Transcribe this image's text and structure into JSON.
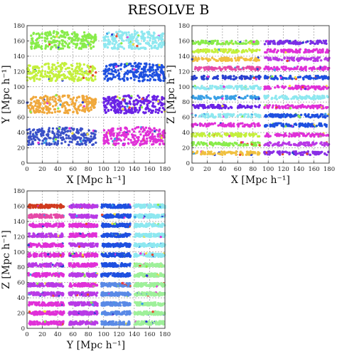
{
  "figure": {
    "title": "RESOLVE B"
  },
  "chart_data": [
    {
      "type": "scatter",
      "projection": "x-y",
      "xlabel": "X [Mpc h⁻¹]",
      "ylabel": "Y [Mpc h⁻¹]",
      "xlim": [
        0,
        180
      ],
      "ylim": [
        0,
        180
      ],
      "xticks": [
        "0",
        "20",
        "40",
        "60",
        "80",
        "100",
        "120",
        "140",
        "160",
        "180"
      ],
      "yticks": [
        "0",
        "20",
        "40",
        "60",
        "80",
        "100",
        "120",
        "140",
        "160",
        "180"
      ],
      "grid": true,
      "groups": [
        {
          "shape": "wedge",
          "x": [
            5,
            90
          ],
          "y": [
            150,
            170
          ],
          "color": "#88ec4a"
        },
        {
          "shape": "wedge",
          "x": [
            100,
            180
          ],
          "y": [
            150,
            170
          ],
          "color": "#8ee8f0"
        },
        {
          "shape": "wedge",
          "x": [
            0,
            90
          ],
          "y": [
            108,
            128
          ],
          "color": "#c4f03c"
        },
        {
          "shape": "wedge",
          "x": [
            100,
            180
          ],
          "y": [
            108,
            128
          ],
          "color": "#1e50e0"
        },
        {
          "shape": "wedge",
          "x": [
            0,
            90
          ],
          "y": [
            66,
            86
          ],
          "color": "#f0a83c"
        },
        {
          "shape": "wedge",
          "x": [
            100,
            180
          ],
          "y": [
            66,
            86
          ],
          "color": "#6a22e6"
        },
        {
          "shape": "wedge",
          "x": [
            0,
            90
          ],
          "y": [
            24,
            44
          ],
          "color": "#3a50c8"
        },
        {
          "shape": "wedge",
          "x": [
            100,
            180
          ],
          "y": [
            24,
            44
          ],
          "color": "#e030d8"
        }
      ]
    },
    {
      "type": "scatter",
      "projection": "x-z",
      "xlabel": "X [Mpc h⁻¹]",
      "ylabel": "Z [Mpc h⁻¹]",
      "xlim": [
        0,
        180
      ],
      "ylim": [
        0,
        180
      ],
      "xticks": [
        "0",
        "20",
        "40",
        "60",
        "80",
        "100",
        "120",
        "140",
        "160",
        "180"
      ],
      "yticks": [
        "0",
        "20",
        "40",
        "60",
        "80",
        "100",
        "120",
        "140",
        "160",
        "180"
      ],
      "grid": true,
      "groups": [
        {
          "shape": "strip",
          "x": [
            0,
            90
          ],
          "z": 158,
          "color": "#88ec4a"
        },
        {
          "shape": "strip",
          "x": [
            95,
            180
          ],
          "z": 158,
          "color": "#7a2ee6"
        },
        {
          "shape": "strip",
          "x": [
            0,
            90
          ],
          "z": 147,
          "color": "#c4f03c"
        },
        {
          "shape": "strip",
          "x": [
            95,
            180
          ],
          "z": 147,
          "color": "#e030d8"
        },
        {
          "shape": "strip",
          "x": [
            0,
            90
          ],
          "z": 136,
          "color": "#f0c040"
        },
        {
          "shape": "strip",
          "x": [
            95,
            180
          ],
          "z": 136,
          "color": "#b83ae6"
        },
        {
          "shape": "strip",
          "x": [
            0,
            90
          ],
          "z": 124,
          "color": "#e64aa8"
        },
        {
          "shape": "strip",
          "x": [
            95,
            180
          ],
          "z": 124,
          "color": "#e030d8"
        },
        {
          "shape": "strip",
          "x": [
            0,
            90
          ],
          "z": 112,
          "color": "#2a40d0"
        },
        {
          "shape": "strip",
          "x": [
            95,
            180
          ],
          "z": 112,
          "color": "#1e50e0"
        },
        {
          "shape": "strip",
          "x": [
            0,
            90
          ],
          "z": 99,
          "color": "#8ee8f0"
        },
        {
          "shape": "strip",
          "x": [
            95,
            180
          ],
          "z": 99,
          "color": "#e030d8"
        },
        {
          "shape": "strip",
          "x": [
            0,
            90
          ],
          "z": 86,
          "color": "#3aa0e6"
        },
        {
          "shape": "strip",
          "x": [
            95,
            180
          ],
          "z": 86,
          "color": "#8ee8f0"
        },
        {
          "shape": "strip",
          "x": [
            0,
            90
          ],
          "z": 74,
          "color": "#6a22e6"
        },
        {
          "shape": "strip",
          "x": [
            95,
            180
          ],
          "z": 74,
          "color": "#e030d8"
        },
        {
          "shape": "strip",
          "x": [
            0,
            90
          ],
          "z": 62,
          "color": "#8ee8f0"
        },
        {
          "shape": "strip",
          "x": [
            95,
            180
          ],
          "z": 62,
          "color": "#1e50e0"
        },
        {
          "shape": "strip",
          "x": [
            0,
            90
          ],
          "z": 50,
          "color": "#e030d8"
        },
        {
          "shape": "strip",
          "x": [
            95,
            180
          ],
          "z": 50,
          "color": "#1e50e0"
        },
        {
          "shape": "strip",
          "x": [
            0,
            90
          ],
          "z": 37,
          "color": "#c4f03c"
        },
        {
          "shape": "strip",
          "x": [
            95,
            180
          ],
          "z": 37,
          "color": "#e030d8"
        },
        {
          "shape": "strip",
          "x": [
            0,
            90
          ],
          "z": 25,
          "color": "#88ec4a"
        },
        {
          "shape": "strip",
          "x": [
            95,
            180
          ],
          "z": 25,
          "color": "#b83ae6"
        },
        {
          "shape": "strip",
          "x": [
            0,
            90
          ],
          "z": 13,
          "color": "#f0c040"
        },
        {
          "shape": "strip",
          "x": [
            95,
            180
          ],
          "z": 13,
          "color": "#8a2ee6"
        }
      ]
    },
    {
      "type": "scatter",
      "projection": "y-z",
      "xlabel": "Y [Mpc h⁻¹]",
      "ylabel": "Z [Mpc h⁻¹]",
      "xlim": [
        0,
        180
      ],
      "ylim": [
        0,
        180
      ],
      "xticks": [
        "0",
        "20",
        "40",
        "60",
        "80",
        "100",
        "120",
        "140",
        "160",
        "180"
      ],
      "yticks": [
        "0",
        "20",
        "40",
        "60",
        "80",
        "100",
        "120",
        "140",
        "160",
        "180"
      ],
      "grid": true,
      "groups": [
        {
          "shape": "strip",
          "x": [
            2,
            48
          ],
          "z": 160,
          "color": "#d03a1e"
        },
        {
          "shape": "strip",
          "x": [
            55,
            92
          ],
          "z": 160,
          "color": "#b83ae6"
        },
        {
          "shape": "strip",
          "x": [
            97,
            135
          ],
          "z": 160,
          "color": "#1e50e0"
        },
        {
          "shape": "strip",
          "x": [
            140,
            180
          ],
          "z": 160,
          "color": "#8ee8f0"
        },
        {
          "shape": "strip",
          "x": [
            2,
            48
          ],
          "z": 147,
          "color": "#e64aa8"
        },
        {
          "shape": "strip",
          "x": [
            55,
            92
          ],
          "z": 147,
          "color": "#b83ae6"
        },
        {
          "shape": "strip",
          "x": [
            97,
            135
          ],
          "z": 147,
          "color": "#1e50e0"
        },
        {
          "shape": "strip",
          "x": [
            140,
            180
          ],
          "z": 147,
          "color": "#8ee8f0"
        },
        {
          "shape": "strip",
          "x": [
            2,
            48
          ],
          "z": 135,
          "color": "#e030d8"
        },
        {
          "shape": "strip",
          "x": [
            55,
            92
          ],
          "z": 135,
          "color": "#e030d8"
        },
        {
          "shape": "strip",
          "x": [
            97,
            135
          ],
          "z": 135,
          "color": "#1e50e0"
        },
        {
          "shape": "strip",
          "x": [
            140,
            180
          ],
          "z": 135,
          "color": "#8ee8f0"
        },
        {
          "shape": "strip",
          "x": [
            2,
            48
          ],
          "z": 122,
          "color": "#b83ae6"
        },
        {
          "shape": "strip",
          "x": [
            55,
            92
          ],
          "z": 122,
          "color": "#e030d8"
        },
        {
          "shape": "strip",
          "x": [
            97,
            135
          ],
          "z": 122,
          "color": "#1e50e0"
        },
        {
          "shape": "strip",
          "x": [
            140,
            180
          ],
          "z": 122,
          "color": "#8ee8f0"
        },
        {
          "shape": "strip",
          "x": [
            2,
            48
          ],
          "z": 109,
          "color": "#e030d8"
        },
        {
          "shape": "strip",
          "x": [
            55,
            92
          ],
          "z": 109,
          "color": "#b83ae6"
        },
        {
          "shape": "strip",
          "x": [
            97,
            135
          ],
          "z": 109,
          "color": "#1e50e0"
        },
        {
          "shape": "strip",
          "x": [
            140,
            180
          ],
          "z": 109,
          "color": "#8ee8f0"
        },
        {
          "shape": "strip",
          "x": [
            2,
            48
          ],
          "z": 96,
          "color": "#e030d8"
        },
        {
          "shape": "strip",
          "x": [
            55,
            92
          ],
          "z": 96,
          "color": "#e030d8"
        },
        {
          "shape": "strip",
          "x": [
            97,
            135
          ],
          "z": 96,
          "color": "#1e50e0"
        },
        {
          "shape": "strip",
          "x": [
            140,
            180
          ],
          "z": 96,
          "color": "#8ee8f0"
        },
        {
          "shape": "strip",
          "x": [
            2,
            48
          ],
          "z": 83,
          "color": "#b83ae6"
        },
        {
          "shape": "strip",
          "x": [
            55,
            92
          ],
          "z": 83,
          "color": "#e030d8"
        },
        {
          "shape": "strip",
          "x": [
            97,
            135
          ],
          "z": 83,
          "color": "#1e50e0"
        },
        {
          "shape": "strip",
          "x": [
            140,
            180
          ],
          "z": 83,
          "color": "#9ef09a"
        },
        {
          "shape": "strip",
          "x": [
            2,
            48
          ],
          "z": 70,
          "color": "#e030d8"
        },
        {
          "shape": "strip",
          "x": [
            55,
            92
          ],
          "z": 70,
          "color": "#b83ae6"
        },
        {
          "shape": "strip",
          "x": [
            97,
            135
          ],
          "z": 70,
          "color": "#1e50e0"
        },
        {
          "shape": "strip",
          "x": [
            140,
            180
          ],
          "z": 70,
          "color": "#9ef09a"
        },
        {
          "shape": "strip",
          "x": [
            2,
            48
          ],
          "z": 57,
          "color": "#b83ae6"
        },
        {
          "shape": "strip",
          "x": [
            55,
            92
          ],
          "z": 57,
          "color": "#e030d8"
        },
        {
          "shape": "strip",
          "x": [
            97,
            135
          ],
          "z": 57,
          "color": "#5a8ae6"
        },
        {
          "shape": "strip",
          "x": [
            140,
            180
          ],
          "z": 57,
          "color": "#9ef09a"
        },
        {
          "shape": "strip",
          "x": [
            2,
            48
          ],
          "z": 45,
          "color": "#b83ae6"
        },
        {
          "shape": "strip",
          "x": [
            55,
            92
          ],
          "z": 45,
          "color": "#b83ae6"
        },
        {
          "shape": "strip",
          "x": [
            97,
            135
          ],
          "z": 45,
          "color": "#5a8ae6"
        },
        {
          "shape": "strip",
          "x": [
            140,
            180
          ],
          "z": 45,
          "color": "#9ef09a"
        },
        {
          "shape": "strip",
          "x": [
            2,
            48
          ],
          "z": 32,
          "color": "#e030d8"
        },
        {
          "shape": "strip",
          "x": [
            55,
            92
          ],
          "z": 32,
          "color": "#b83ae6"
        },
        {
          "shape": "strip",
          "x": [
            97,
            135
          ],
          "z": 32,
          "color": "#5a8ae6"
        },
        {
          "shape": "strip",
          "x": [
            140,
            180
          ],
          "z": 32,
          "color": "#9ef09a"
        },
        {
          "shape": "strip",
          "x": [
            2,
            48
          ],
          "z": 20,
          "color": "#e030d8"
        },
        {
          "shape": "strip",
          "x": [
            55,
            92
          ],
          "z": 20,
          "color": "#b83ae6"
        },
        {
          "shape": "strip",
          "x": [
            97,
            135
          ],
          "z": 20,
          "color": "#5a8ae6"
        },
        {
          "shape": "strip",
          "x": [
            140,
            180
          ],
          "z": 20,
          "color": "#9ef09a"
        },
        {
          "shape": "strip",
          "x": [
            2,
            48
          ],
          "z": 7,
          "color": "#e030d8"
        },
        {
          "shape": "strip",
          "x": [
            55,
            92
          ],
          "z": 7,
          "color": "#b83ae6"
        },
        {
          "shape": "strip",
          "x": [
            97,
            135
          ],
          "z": 7,
          "color": "#5a8ae6"
        },
        {
          "shape": "strip",
          "x": [
            140,
            180
          ],
          "z": 7,
          "color": "#9ef09a"
        }
      ]
    }
  ]
}
